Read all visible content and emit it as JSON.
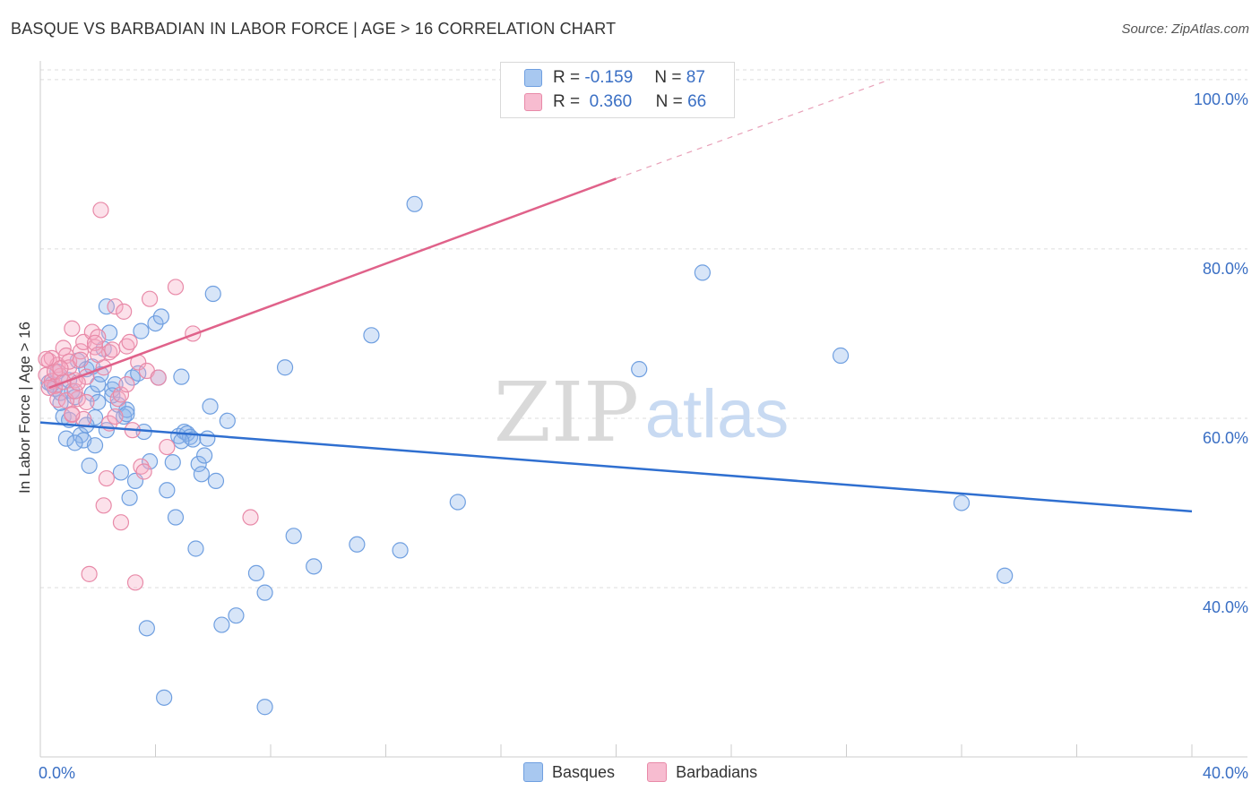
{
  "title": "BASQUE VS BARBADIAN IN LABOR FORCE | AGE > 16 CORRELATION CHART",
  "source": "Source: ZipAtlas.com",
  "watermark": {
    "zip": "ZIP",
    "atlas": "atlas"
  },
  "legend": {
    "rows": [
      {
        "r_label": "R =",
        "r_value": "-0.159",
        "n_label": "N =",
        "n_value": "87",
        "color": "#a8c8f0",
        "border": "#6f9fe0"
      },
      {
        "r_label": "R =",
        "r_value": "0.360",
        "n_label": "N =",
        "n_value": "66",
        "color": "#f7bcd0",
        "border": "#e88aa8"
      }
    ]
  },
  "bottom_legend": [
    {
      "label": "Basques",
      "color": "#a8c8f0",
      "border": "#6f9fe0"
    },
    {
      "label": "Barbadians",
      "color": "#f7bcd0",
      "border": "#e88aa8"
    }
  ],
  "chart_data": {
    "type": "scatter",
    "title": "BASQUE VS BARBADIAN IN LABOR FORCE | AGE > 16 CORRELATION CHART",
    "ylabel": "In Labor Force | Age > 16",
    "xlim": [
      0,
      40
    ],
    "ylim": [
      20,
      102
    ],
    "x_tick_labels": [
      "0.0%",
      "40.0%"
    ],
    "y_ticks": [
      {
        "value": 40,
        "label": "40.0%"
      },
      {
        "value": 60,
        "label": "60.0%"
      },
      {
        "value": 80,
        "label": "80.0%"
      },
      {
        "value": 100,
        "label": "100.0%"
      }
    ],
    "grid": true,
    "series": [
      {
        "name": "Basques",
        "color": "#6f9fe0",
        "fill": "rgba(140,180,235,0.35)",
        "line_color": "#2f6fd0",
        "trend": {
          "x": [
            0,
            40
          ],
          "y": [
            59.5,
            49.0
          ]
        },
        "points": [
          [
            0.3,
            64.2
          ],
          [
            0.5,
            63.5
          ],
          [
            0.6,
            65.5
          ],
          [
            0.7,
            61.8
          ],
          [
            0.8,
            60.2
          ],
          [
            0.9,
            57.6
          ],
          [
            1.0,
            64.5
          ],
          [
            1.1,
            63.2
          ],
          [
            1.2,
            62.5
          ],
          [
            1.3,
            66.8
          ],
          [
            1.4,
            58.0
          ],
          [
            1.5,
            57.4
          ],
          [
            1.6,
            65.8
          ],
          [
            1.7,
            54.4
          ],
          [
            1.8,
            62.9
          ],
          [
            1.9,
            56.8
          ],
          [
            2.0,
            64.0
          ],
          [
            2.1,
            65.2
          ],
          [
            2.2,
            68.2
          ],
          [
            2.3,
            73.2
          ],
          [
            2.4,
            70.1
          ],
          [
            2.5,
            63.4
          ],
          [
            2.6,
            64.0
          ],
          [
            2.7,
            61.6
          ],
          [
            2.8,
            53.6
          ],
          [
            2.9,
            60.2
          ],
          [
            3.0,
            61.0
          ],
          [
            3.1,
            50.6
          ],
          [
            3.2,
            64.8
          ],
          [
            3.3,
            52.6
          ],
          [
            3.4,
            65.3
          ],
          [
            3.5,
            70.3
          ],
          [
            3.6,
            58.4
          ],
          [
            3.7,
            35.2
          ],
          [
            3.8,
            54.9
          ],
          [
            4.0,
            71.2
          ],
          [
            4.1,
            64.8
          ],
          [
            4.2,
            72.0
          ],
          [
            4.3,
            27.0
          ],
          [
            4.4,
            51.5
          ],
          [
            4.6,
            54.8
          ],
          [
            4.7,
            48.3
          ],
          [
            4.8,
            57.9
          ],
          [
            4.9,
            64.9
          ],
          [
            5.0,
            58.4
          ],
          [
            5.1,
            58.2
          ],
          [
            5.2,
            57.8
          ],
          [
            5.3,
            57.5
          ],
          [
            5.4,
            44.6
          ],
          [
            5.5,
            54.6
          ],
          [
            5.6,
            53.4
          ],
          [
            5.7,
            55.6
          ],
          [
            5.8,
            57.6
          ],
          [
            5.9,
            61.4
          ],
          [
            6.0,
            74.7
          ],
          [
            6.1,
            52.6
          ],
          [
            6.3,
            35.6
          ],
          [
            6.5,
            59.7
          ],
          [
            6.8,
            36.7
          ],
          [
            7.5,
            41.7
          ],
          [
            7.8,
            39.4
          ],
          [
            7.8,
            25.9
          ],
          [
            8.5,
            66.0
          ],
          [
            8.8,
            46.1
          ],
          [
            9.5,
            42.5
          ],
          [
            11.0,
            45.1
          ],
          [
            11.5,
            69.8
          ],
          [
            12.5,
            44.4
          ],
          [
            13.0,
            85.3
          ],
          [
            14.5,
            50.1
          ],
          [
            20.8,
            65.8
          ],
          [
            23.0,
            77.2
          ],
          [
            27.8,
            67.4
          ],
          [
            32.0,
            50.0
          ],
          [
            33.5,
            41.4
          ],
          [
            1.9,
            60.1
          ],
          [
            2.3,
            58.6
          ],
          [
            1.2,
            57.1
          ],
          [
            0.4,
            64.0
          ],
          [
            2.5,
            62.7
          ],
          [
            3.0,
            60.5
          ],
          [
            1.6,
            59.2
          ],
          [
            4.9,
            57.3
          ],
          [
            1.0,
            59.8
          ],
          [
            2.0,
            61.9
          ],
          [
            0.7,
            63.0
          ],
          [
            1.8,
            66.1
          ]
        ]
      },
      {
        "name": "Barbadians",
        "color": "#e88aa8",
        "fill": "rgba(245,170,195,0.35)",
        "line_color": "#e0628a",
        "trend": {
          "x": [
            0.3,
            20.0
          ],
          "y": [
            63.6,
            88.3
          ]
        },
        "trend_dashed": {
          "x": [
            20.0,
            29.5
          ],
          "y": [
            88.3,
            100.0
          ]
        },
        "points": [
          [
            0.2,
            65.1
          ],
          [
            0.3,
            66.8
          ],
          [
            0.4,
            64.4
          ],
          [
            0.5,
            63.8
          ],
          [
            0.6,
            66.3
          ],
          [
            0.7,
            65.0
          ],
          [
            0.8,
            68.3
          ],
          [
            0.9,
            67.4
          ],
          [
            1.0,
            66.0
          ],
          [
            1.1,
            70.6
          ],
          [
            1.2,
            64.5
          ],
          [
            1.3,
            62.3
          ],
          [
            1.4,
            67.9
          ],
          [
            1.5,
            69.0
          ],
          [
            1.6,
            64.9
          ],
          [
            1.7,
            41.6
          ],
          [
            1.8,
            70.2
          ],
          [
            1.9,
            68.4
          ],
          [
            2.0,
            69.6
          ],
          [
            2.1,
            84.6
          ],
          [
            2.2,
            66.0
          ],
          [
            2.3,
            52.9
          ],
          [
            2.4,
            67.8
          ],
          [
            2.5,
            68.1
          ],
          [
            2.6,
            73.2
          ],
          [
            2.7,
            62.3
          ],
          [
            2.8,
            47.7
          ],
          [
            2.9,
            72.6
          ],
          [
            3.0,
            68.5
          ],
          [
            3.1,
            69.0
          ],
          [
            3.2,
            58.6
          ],
          [
            3.3,
            40.6
          ],
          [
            3.4,
            66.6
          ],
          [
            3.5,
            54.3
          ],
          [
            3.6,
            53.7
          ],
          [
            3.7,
            65.6
          ],
          [
            3.8,
            74.1
          ],
          [
            4.1,
            64.8
          ],
          [
            4.4,
            56.6
          ],
          [
            4.7,
            75.5
          ],
          [
            5.3,
            70.0
          ],
          [
            7.3,
            48.3
          ],
          [
            0.3,
            63.6
          ],
          [
            0.5,
            65.5
          ],
          [
            0.6,
            62.2
          ],
          [
            0.8,
            64.3
          ],
          [
            0.9,
            62.1
          ],
          [
            1.0,
            66.7
          ],
          [
            1.1,
            60.4
          ],
          [
            1.2,
            63.2
          ],
          [
            1.3,
            64.2
          ],
          [
            1.4,
            66.9
          ],
          [
            1.5,
            59.9
          ],
          [
            1.6,
            61.9
          ],
          [
            2.2,
            49.7
          ],
          [
            2.4,
            59.4
          ],
          [
            2.6,
            60.2
          ],
          [
            2.8,
            62.8
          ],
          [
            0.4,
            67.1
          ],
          [
            0.7,
            65.9
          ],
          [
            1.9,
            68.9
          ],
          [
            3.0,
            64.0
          ],
          [
            1.1,
            60.5
          ],
          [
            0.2,
            67.0
          ],
          [
            2.0,
            67.5
          ],
          [
            20.2,
            100.0
          ]
        ]
      }
    ]
  }
}
